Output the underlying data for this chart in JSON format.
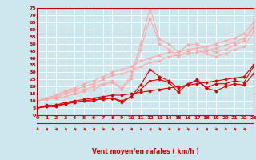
{
  "background_color": "#cce8ee",
  "grid_color": "#ffffff",
  "xlabel": "Vent moyen/en rafales ( km/h )",
  "xlim": [
    0,
    23
  ],
  "ylim": [
    0,
    75
  ],
  "yticks": [
    0,
    5,
    10,
    15,
    20,
    25,
    30,
    35,
    40,
    45,
    50,
    55,
    60,
    65,
    70,
    75
  ],
  "xticks": [
    0,
    1,
    2,
    3,
    4,
    5,
    6,
    7,
    8,
    9,
    10,
    11,
    12,
    13,
    14,
    15,
    16,
    17,
    18,
    19,
    20,
    21,
    22,
    23
  ],
  "series": [
    {
      "x": [
        0,
        1,
        2,
        3,
        4,
        5,
        6,
        7,
        8,
        9,
        10,
        11,
        12,
        13,
        14,
        15,
        16,
        17,
        18,
        19,
        20,
        21,
        22,
        23
      ],
      "y": [
        5,
        7,
        7,
        9,
        10,
        11,
        12,
        13,
        14,
        14,
        15,
        16,
        17,
        18,
        19,
        20,
        21,
        22,
        23,
        24,
        25,
        26,
        27,
        35
      ],
      "color": "#dd0000",
      "lw": 0.8,
      "marker": "D",
      "ms": 1.5
    },
    {
      "x": [
        0,
        1,
        2,
        3,
        4,
        5,
        6,
        7,
        8,
        9,
        10,
        11,
        12,
        13,
        14,
        15,
        16,
        17,
        18,
        19,
        20,
        21,
        22,
        23
      ],
      "y": [
        5,
        6,
        7,
        8,
        9,
        10,
        11,
        11,
        12,
        10,
        13,
        21,
        32,
        27,
        24,
        19,
        21,
        25,
        19,
        22,
        22,
        24,
        23,
        34
      ],
      "color": "#dd0000",
      "lw": 0.8,
      "marker": "D",
      "ms": 1.5
    },
    {
      "x": [
        0,
        1,
        2,
        3,
        4,
        5,
        6,
        7,
        8,
        9,
        10,
        11,
        12,
        13,
        14,
        15,
        16,
        17,
        18,
        19,
        20,
        21,
        22,
        23
      ],
      "y": [
        5,
        6,
        6,
        8,
        9,
        10,
        10,
        12,
        12,
        9,
        13,
        18,
        24,
        25,
        23,
        16,
        22,
        24,
        19,
        17,
        20,
        22,
        21,
        29
      ],
      "color": "#dd0000",
      "lw": 0.8,
      "marker": "D",
      "ms": 1.5
    },
    {
      "x": [
        0,
        1,
        2,
        3,
        4,
        5,
        6,
        7,
        8,
        9,
        10,
        11,
        12,
        13,
        14,
        15,
        16,
        17,
        18,
        19,
        20,
        21,
        22,
        23
      ],
      "y": [
        10,
        12,
        14,
        17,
        19,
        22,
        24,
        27,
        30,
        32,
        34,
        38,
        40,
        42,
        44,
        44,
        46,
        47,
        48,
        50,
        52,
        54,
        57,
        65
      ],
      "color": "#ffaaaa",
      "lw": 0.8,
      "marker": "D",
      "ms": 1.5
    },
    {
      "x": [
        0,
        1,
        2,
        3,
        4,
        5,
        6,
        7,
        8,
        9,
        10,
        11,
        12,
        13,
        14,
        15,
        16,
        17,
        18,
        19,
        20,
        21,
        22,
        23
      ],
      "y": [
        10,
        12,
        13,
        16,
        18,
        20,
        22,
        25,
        28,
        29,
        31,
        34,
        37,
        38,
        41,
        42,
        43,
        44,
        45,
        47,
        49,
        51,
        54,
        62
      ],
      "color": "#ffaaaa",
      "lw": 0.8,
      "marker": "D",
      "ms": 1.5
    },
    {
      "x": [
        0,
        1,
        2,
        3,
        4,
        5,
        6,
        7,
        8,
        9,
        10,
        11,
        12,
        13,
        14,
        15,
        16,
        17,
        18,
        19,
        20,
        21,
        22,
        23
      ],
      "y": [
        10,
        11,
        12,
        15,
        17,
        18,
        20,
        22,
        24,
        19,
        28,
        50,
        75,
        53,
        50,
        44,
        49,
        50,
        46,
        44,
        46,
        49,
        52,
        61
      ],
      "color": "#ffaaaa",
      "lw": 0.8,
      "marker": "D",
      "ms": 1.5
    },
    {
      "x": [
        0,
        1,
        2,
        3,
        4,
        5,
        6,
        7,
        8,
        9,
        10,
        11,
        12,
        13,
        14,
        15,
        16,
        17,
        18,
        19,
        20,
        21,
        22,
        23
      ],
      "y": [
        10,
        11,
        12,
        13,
        15,
        17,
        18,
        21,
        23,
        18,
        26,
        46,
        68,
        50,
        46,
        41,
        45,
        46,
        43,
        41,
        43,
        46,
        48,
        58
      ],
      "color": "#ffaaaa",
      "lw": 0.8,
      "marker": "D",
      "ms": 1.5
    }
  ],
  "arrow_color": "#cc0000",
  "spine_color": "#cc0000",
  "tick_color": "#cc0000",
  "tick_fontsize": 4.5,
  "xlabel_fontsize": 5.5
}
